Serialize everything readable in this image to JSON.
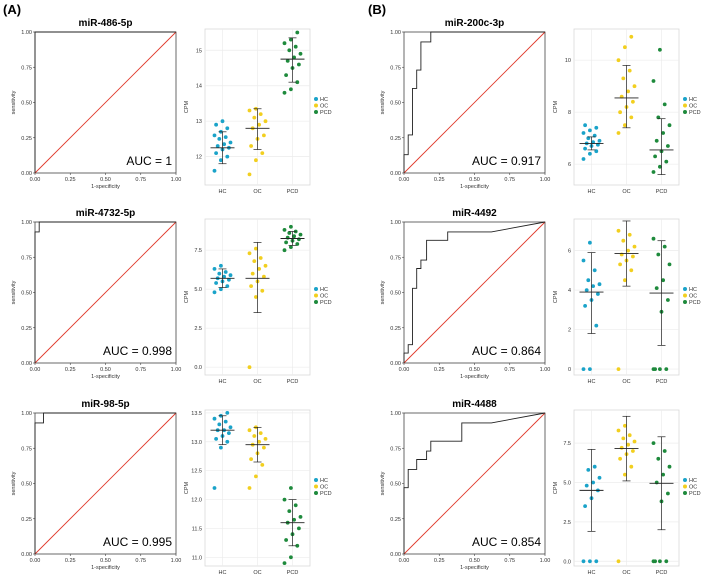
{
  "panel_labels": {
    "a": "(A)",
    "b": "(B)"
  },
  "legend_labels": [
    "HC",
    "OC",
    "PCD"
  ],
  "legend_colors": [
    "#1aa3c9",
    "#f2cf1f",
    "#1e8a3c"
  ],
  "roc_common": {
    "xlabel": "1-specificity",
    "ylabel": "sensitivity",
    "ticks": [
      "0.00",
      "0.25",
      "0.50",
      "0.75",
      "1.00"
    ],
    "curve_color": "#222222",
    "diag_color": "#e0392b"
  },
  "chart_data": [
    {
      "type": "line",
      "chart": "roc",
      "title": "miR-486-5p",
      "auc_label": "AUC = 1",
      "x": [
        0,
        0,
        1
      ],
      "y": [
        0,
        1,
        1
      ]
    },
    {
      "type": "scatter",
      "chart": "dot",
      "ylabel": "CPM",
      "categories": [
        "HC",
        "OC",
        "PCD"
      ],
      "ylim": [
        11.2,
        15.6
      ],
      "yticks": [
        12,
        13,
        14,
        15
      ],
      "tick_labels": [
        "12",
        "13",
        "14",
        "15"
      ],
      "series": [
        {
          "name": "HC",
          "values": [
            11.6,
            11.9,
            12.0,
            12.1,
            12.2,
            12.25,
            12.3,
            12.35,
            12.4,
            12.5,
            12.55,
            12.6,
            12.7,
            12.8,
            12.9,
            13.0
          ],
          "mean": 12.25,
          "sd_low": 11.8,
          "sd_high": 12.7
        },
        {
          "name": "OC",
          "values": [
            11.5,
            11.9,
            12.1,
            12.3,
            12.5,
            12.6,
            12.8,
            12.9,
            13.0,
            13.1,
            13.2,
            13.3,
            13.35
          ],
          "mean": 12.8,
          "sd_low": 12.2,
          "sd_high": 13.35
        },
        {
          "name": "PCD",
          "values": [
            13.8,
            13.9,
            14.1,
            14.3,
            14.5,
            14.6,
            14.7,
            14.8,
            14.9,
            15.0,
            15.1,
            15.2,
            15.3,
            15.5
          ],
          "mean": 14.75,
          "sd_low": 14.1,
          "sd_high": 15.35
        }
      ]
    },
    {
      "type": "line",
      "chart": "roc",
      "title": "miR-200c-3p",
      "auc_label": "AUC = 0.917",
      "x": [
        0,
        0,
        0.03,
        0.03,
        0.06,
        0.06,
        0.09,
        0.09,
        0.12,
        0.12,
        0.19,
        0.19,
        1
      ],
      "y": [
        0,
        0.13,
        0.13,
        0.27,
        0.27,
        0.6,
        0.6,
        0.73,
        0.73,
        0.93,
        0.93,
        1,
        1
      ]
    },
    {
      "type": "scatter",
      "chart": "dot",
      "ylabel": "CPM",
      "categories": [
        "HC",
        "OC",
        "PCD"
      ],
      "ylim": [
        5.2,
        11.2
      ],
      "yticks": [
        6,
        8,
        10
      ],
      "tick_labels": [
        "6",
        "8",
        "10"
      ],
      "series": [
        {
          "name": "HC",
          "values": [
            6.2,
            6.4,
            6.5,
            6.6,
            6.7,
            6.75,
            6.8,
            6.85,
            6.9,
            7.0,
            7.1,
            7.2,
            7.3,
            7.4,
            7.5
          ],
          "mean": 6.8,
          "sd_low": 6.55,
          "sd_high": 7.05
        },
        {
          "name": "OC",
          "values": [
            7.2,
            7.5,
            7.8,
            8.0,
            8.2,
            8.4,
            8.6,
            8.8,
            9.0,
            9.3,
            9.6,
            10.0,
            10.5,
            10.9
          ],
          "mean": 8.55,
          "sd_low": 7.4,
          "sd_high": 9.8
        },
        {
          "name": "PCD",
          "values": [
            5.7,
            5.9,
            6.1,
            6.3,
            6.5,
            6.7,
            6.9,
            7.2,
            7.5,
            7.8,
            8.3,
            9.2,
            10.4
          ],
          "mean": 6.55,
          "sd_low": 5.6,
          "sd_high": 7.75
        }
      ]
    },
    {
      "type": "line",
      "chart": "roc",
      "title": "miR-4732-5p",
      "auc_label": "AUC = 0.998",
      "x": [
        0,
        0,
        0.03,
        0.03,
        1
      ],
      "y": [
        0,
        0.93,
        0.93,
        1,
        1
      ]
    },
    {
      "type": "scatter",
      "chart": "dot",
      "ylabel": "CPM",
      "categories": [
        "HC",
        "OC",
        "PCD"
      ],
      "ylim": [
        -0.5,
        9.5
      ],
      "yticks": [
        0,
        2.5,
        5,
        7.5
      ],
      "tick_labels": [
        "0.0",
        "2.5",
        "5.0",
        "7.5"
      ],
      "series": [
        {
          "name": "HC",
          "values": [
            4.8,
            5.0,
            5.2,
            5.4,
            5.5,
            5.6,
            5.7,
            5.8,
            5.9,
            6.0,
            6.1,
            6.3,
            6.5
          ],
          "mean": 5.7,
          "sd_low": 5.1,
          "sd_high": 6.3
        },
        {
          "name": "OC",
          "values": [
            0.0,
            4.5,
            4.9,
            5.2,
            5.5,
            5.8,
            6.0,
            6.3,
            6.5,
            6.8,
            7.0,
            7.3,
            7.6
          ],
          "mean": 5.7,
          "sd_low": 3.5,
          "sd_high": 8.0
        },
        {
          "name": "PCD",
          "values": [
            7.5,
            7.7,
            7.9,
            8.0,
            8.1,
            8.2,
            8.3,
            8.4,
            8.5,
            8.6,
            8.7,
            8.8,
            9.0
          ],
          "mean": 8.25,
          "sd_low": 7.8,
          "sd_high": 8.7
        }
      ]
    },
    {
      "type": "line",
      "chart": "roc",
      "title": "miR-4492",
      "auc_label": "AUC = 0.864",
      "x": [
        0,
        0,
        0.03,
        0.03,
        0.06,
        0.06,
        0.09,
        0.09,
        0.12,
        0.12,
        0.16,
        0.16,
        0.31,
        0.31,
        0.62,
        1
      ],
      "y": [
        0,
        0.07,
        0.07,
        0.13,
        0.13,
        0.53,
        0.53,
        0.67,
        0.67,
        0.73,
        0.73,
        0.87,
        0.87,
        0.93,
        0.93,
        1
      ]
    },
    {
      "type": "scatter",
      "chart": "dot",
      "ylabel": "CPM",
      "categories": [
        "HC",
        "OC",
        "PCD"
      ],
      "ylim": [
        -0.3,
        7.6
      ],
      "yticks": [
        0,
        2,
        4,
        6
      ],
      "tick_labels": [
        "0",
        "2",
        "4",
        "6"
      ],
      "series": [
        {
          "name": "HC",
          "values": [
            0.0,
            0.0,
            2.2,
            3.2,
            3.5,
            3.8,
            4.0,
            4.2,
            4.3,
            4.5,
            5.0,
            5.5,
            6.4
          ],
          "mean": 3.9,
          "sd_low": 1.8,
          "sd_high": 5.9
        },
        {
          "name": "OC",
          "values": [
            0.0,
            4.5,
            5.0,
            5.3,
            5.5,
            5.7,
            5.8,
            6.0,
            6.2,
            6.5,
            6.8,
            7.0
          ],
          "mean": 5.85,
          "sd_low": 4.2,
          "sd_high": 7.5
        },
        {
          "name": "PCD",
          "values": [
            0.0,
            0.0,
            0.0,
            0.0,
            2.9,
            3.5,
            4.1,
            4.5,
            5.3,
            5.8,
            6.2,
            6.6
          ],
          "mean": 3.85,
          "sd_low": 1.2,
          "sd_high": 6.5
        }
      ]
    },
    {
      "type": "line",
      "chart": "roc",
      "title": "miR-98-5p",
      "auc_label": "AUC = 0.995",
      "x": [
        0,
        0,
        0.06,
        0.06,
        1
      ],
      "y": [
        0,
        0.93,
        0.93,
        1,
        1
      ]
    },
    {
      "type": "scatter",
      "chart": "dot",
      "ylabel": "CPM",
      "categories": [
        "HC",
        "OC",
        "PCD"
      ],
      "ylim": [
        10.85,
        13.55
      ],
      "yticks": [
        11.0,
        11.5,
        12.0,
        12.5,
        13.0,
        13.5
      ],
      "tick_labels": [
        "11.0",
        "11.5",
        "12.0",
        "12.5",
        "13.0",
        "13.5"
      ],
      "series": [
        {
          "name": "HC",
          "values": [
            12.2,
            12.9,
            13.0,
            13.05,
            13.1,
            13.15,
            13.2,
            13.2,
            13.25,
            13.3,
            13.35,
            13.4,
            13.45,
            13.5
          ],
          "mean": 13.2,
          "sd_low": 12.95,
          "sd_high": 13.45
        },
        {
          "name": "OC",
          "values": [
            12.2,
            12.4,
            12.6,
            12.7,
            12.8,
            12.9,
            12.95,
            13.0,
            13.05,
            13.1,
            13.15,
            13.2,
            13.25
          ],
          "mean": 12.95,
          "sd_low": 12.65,
          "sd_high": 13.25
        },
        {
          "name": "PCD",
          "values": [
            10.9,
            11.0,
            11.2,
            11.3,
            11.4,
            11.5,
            11.6,
            11.65,
            11.7,
            11.8,
            11.9,
            12.0,
            12.2
          ],
          "mean": 11.6,
          "sd_low": 11.2,
          "sd_high": 12.0
        }
      ]
    },
    {
      "type": "line",
      "chart": "roc",
      "title": "miR-4488",
      "auc_label": "AUC = 0.854",
      "x": [
        0,
        0,
        0.03,
        0.03,
        0.09,
        0.09,
        0.16,
        0.16,
        0.19,
        0.19,
        0.41,
        0.41,
        0.62,
        1
      ],
      "y": [
        0,
        0.47,
        0.47,
        0.6,
        0.6,
        0.67,
        0.67,
        0.73,
        0.73,
        0.8,
        0.8,
        0.93,
        0.93,
        1
      ]
    },
    {
      "type": "scatter",
      "chart": "dot",
      "ylabel": "CPM",
      "categories": [
        "HC",
        "OC",
        "PCD"
      ],
      "ylim": [
        -0.3,
        9.6
      ],
      "yticks": [
        0,
        2.5,
        5,
        7.5
      ],
      "tick_labels": [
        "0.0",
        "2.5",
        "5.0",
        "7.5"
      ],
      "series": [
        {
          "name": "HC",
          "values": [
            0.0,
            0.0,
            0.0,
            3.5,
            4.0,
            4.5,
            4.8,
            5.0,
            5.3,
            5.8,
            6.0
          ],
          "mean": 4.5,
          "sd_low": 1.9,
          "sd_high": 7.1
        },
        {
          "name": "OC",
          "values": [
            0.0,
            5.5,
            6.0,
            6.5,
            6.8,
            7.0,
            7.2,
            7.4,
            7.6,
            7.8,
            8.0,
            8.3,
            8.6
          ],
          "mean": 7.15,
          "sd_low": 5.1,
          "sd_high": 9.2
        },
        {
          "name": "PCD",
          "values": [
            0.0,
            0.0,
            0.0,
            0.0,
            3.8,
            4.3,
            5.0,
            5.5,
            6.0,
            6.5,
            7.0,
            7.5
          ],
          "mean": 4.95,
          "sd_low": 2.0,
          "sd_high": 7.9
        }
      ]
    }
  ]
}
